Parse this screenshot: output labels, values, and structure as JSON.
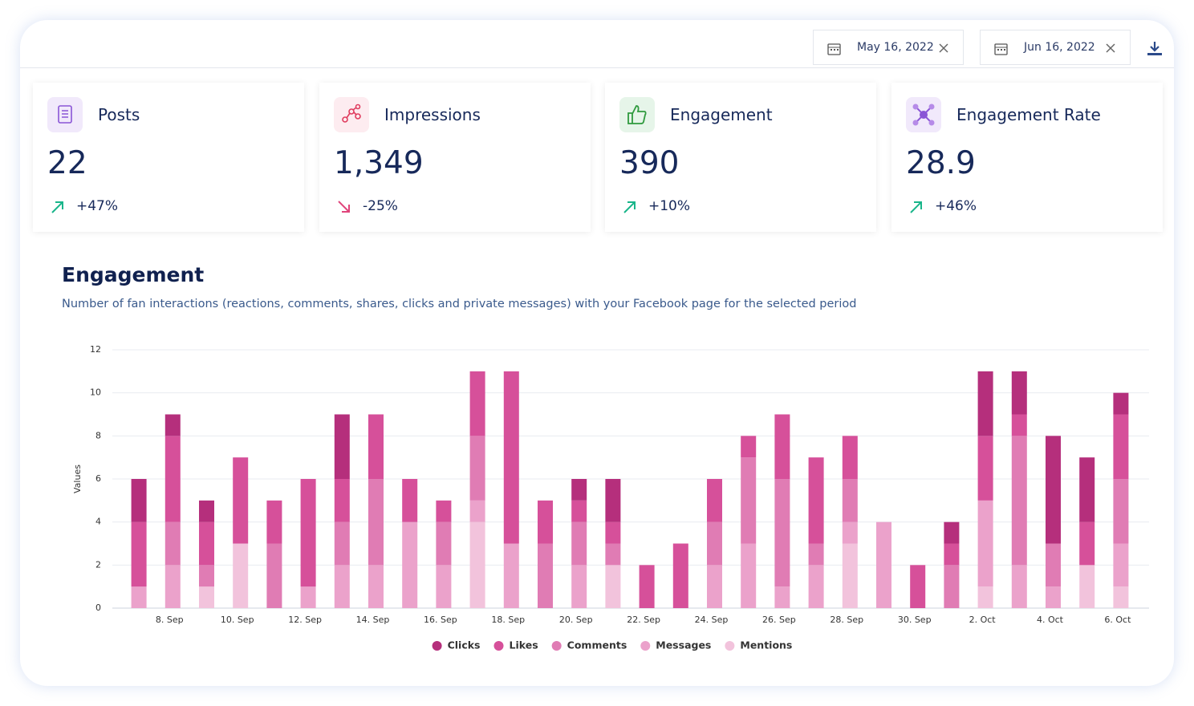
{
  "header": {
    "date_from": "May 16, 2022",
    "date_to": "Jun 16, 2022"
  },
  "kpis": [
    {
      "label": "Posts",
      "value": "22",
      "change": "+47%"
    },
    {
      "label": "Impressions",
      "value": "1,349",
      "change": "-25%"
    },
    {
      "label": "Engagement",
      "value": "390",
      "change": "+10%"
    },
    {
      "label": "Engagement Rate",
      "value": "28.9",
      "change": "+46%"
    }
  ],
  "chart_data": {
    "type": "stacked_bar",
    "title": "Engagement",
    "subtitle": "Number of fan interactions (reactions, comments, shares, clicks and private messages) with your Facebook page for the selected period",
    "ylabel": "Values",
    "categories": [
      null,
      "8. Sep",
      null,
      "10. Sep",
      null,
      "12. Sep",
      null,
      "14. Sep",
      null,
      "16. Sep",
      null,
      "18. Sep",
      null,
      "20. Sep",
      null,
      "22. Sep",
      null,
      "24. Sep",
      null,
      "26. Sep",
      null,
      "28. Sep",
      null,
      "30. Sep",
      null,
      "2. Oct",
      null,
      "4. Oct",
      null,
      "6. Oct"
    ],
    "ylim": [
      0,
      12
    ],
    "yticks": [
      0,
      2,
      4,
      6,
      8,
      10,
      12
    ],
    "grid": true,
    "series": [
      {
        "name": "Mentions",
        "color": "#f2c3dc",
        "values": [
          0,
          0,
          1,
          3,
          0,
          0,
          0,
          0,
          0,
          0,
          4,
          0,
          0,
          0,
          2,
          0,
          0,
          0,
          0,
          0,
          0,
          3,
          0,
          0,
          0,
          1,
          0,
          0,
          2,
          1
        ]
      },
      {
        "name": "Messages",
        "color": "#eba2cb",
        "values": [
          1,
          2,
          0,
          0,
          0,
          1,
          2,
          2,
          4,
          2,
          1,
          3,
          0,
          2,
          0,
          0,
          0,
          2,
          3,
          1,
          2,
          1,
          4,
          0,
          0,
          4,
          2,
          1,
          0,
          2
        ]
      },
      {
        "name": "Comments",
        "color": "#e07cb4",
        "values": [
          0,
          2,
          1,
          0,
          3,
          0,
          2,
          4,
          0,
          2,
          3,
          0,
          3,
          2,
          1,
          0,
          0,
          2,
          4,
          5,
          1,
          2,
          0,
          0,
          2,
          0,
          6,
          2,
          0,
          3
        ]
      },
      {
        "name": "Likes",
        "color": "#d6509a",
        "values": [
          3,
          4,
          2,
          4,
          2,
          5,
          2,
          3,
          2,
          1,
          3,
          8,
          2,
          1,
          1,
          2,
          3,
          2,
          1,
          3,
          4,
          2,
          0,
          2,
          1,
          3,
          1,
          0,
          2,
          3
        ]
      },
      {
        "name": "Clicks",
        "color": "#b52f7c",
        "values": [
          2,
          1,
          1,
          0,
          0,
          0,
          3,
          0,
          0,
          0,
          0,
          0,
          0,
          1,
          2,
          0,
          0,
          0,
          0,
          0,
          0,
          0,
          0,
          0,
          1,
          3,
          2,
          5,
          3,
          1
        ]
      }
    ]
  }
}
